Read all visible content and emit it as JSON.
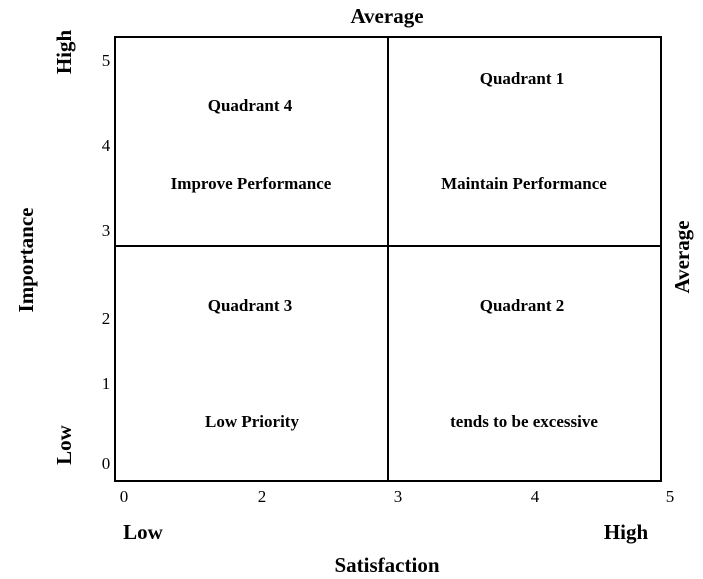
{
  "top_label": "Average",
  "right_label": "Average",
  "x_axis": {
    "title": "Satisfaction",
    "low": "Low",
    "high": "High",
    "ticks": [
      0,
      2,
      3,
      4,
      5
    ]
  },
  "y_axis": {
    "title": "Importance",
    "low": "Low",
    "high": "High",
    "ticks": [
      5,
      4,
      3,
      2,
      1,
      0
    ]
  },
  "quadrants": [
    {
      "title": "Quadrant 4",
      "label": "Improve Performance"
    },
    {
      "title": "Quadrant 1",
      "label": "Maintain Performance"
    },
    {
      "title": "Quadrant 3",
      "label": "Low Priority"
    },
    {
      "title": "Quadrant 2",
      "label": "tends to be excessive"
    }
  ]
}
